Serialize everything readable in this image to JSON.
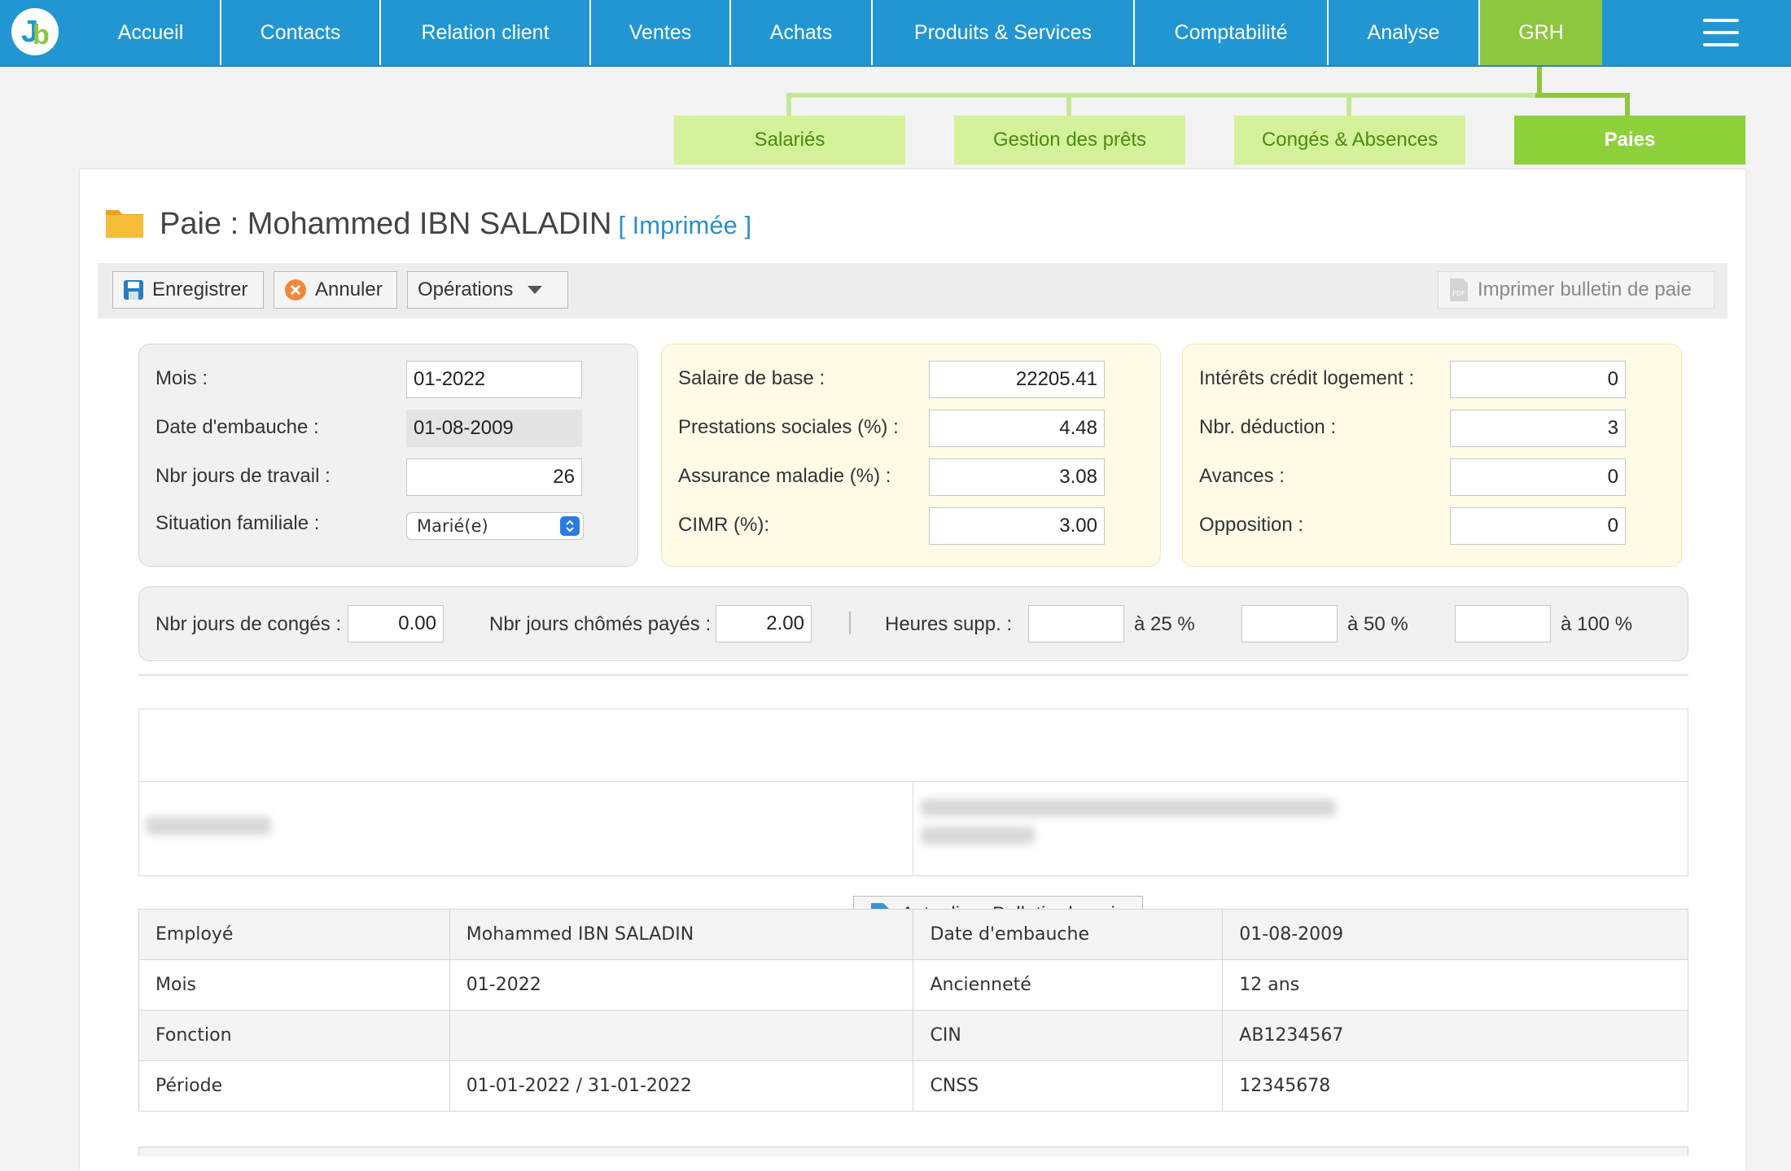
{
  "nav": {
    "items": [
      "Accueil",
      "Contacts",
      "Relation client",
      "Ventes",
      "Achats",
      "Produits & Services",
      "Comptabilité",
      "Analyse",
      "GRH"
    ],
    "active": "GRH"
  },
  "subnav": {
    "items": [
      "Salariés",
      "Gestion des prêts",
      "Congés & Absences",
      "Paies"
    ],
    "active": "Paies"
  },
  "page": {
    "title": "Paie : Mohammed IBN SALADIN",
    "status": "[ Imprimée ]"
  },
  "toolbar": {
    "save": "Enregistrer",
    "cancel": "Annuler",
    "operations": "Opérations",
    "print": "Imprimer bulletin de paie"
  },
  "form": {
    "left": {
      "mois_label": "Mois :",
      "mois": "01-2022",
      "embauche_label": "Date d'embauche :",
      "embauche": "01-08-2009",
      "jours_label": "Nbr jours de travail :",
      "jours": "26",
      "situation_label": "Situation familiale :",
      "situation": "Marié(e)"
    },
    "middle": {
      "salaire_label": "Salaire de base :",
      "salaire": "22205.41",
      "prestations_label": "Prestations sociales (%) :",
      "prestations": "4.48",
      "assurance_label": "Assurance maladie (%) :",
      "assurance": "3.08",
      "cimr_label": "CIMR (%):",
      "cimr": "3.00"
    },
    "right": {
      "interets_label": "Intérêts crédit logement :",
      "interets": "0",
      "deduction_label": "Nbr. déduction :",
      "deduction": "3",
      "avances_label": "Avances :",
      "avances": "0",
      "opposition_label": "Opposition :",
      "opposition": "0"
    },
    "bottom": {
      "conges_label": "Nbr jours de congés :",
      "conges": "0.00",
      "chomes_label": "Nbr jours chômés payés :",
      "chomes": "2.00",
      "heures_label": "Heures supp. :",
      "h25": "",
      "h25_label": "à 25 %",
      "h50": "",
      "h50_label": "à 50 %",
      "h100": "",
      "h100_label": "à 100 %"
    }
  },
  "bulletin": {
    "refresh": "Actualiser Bulletin de paie",
    "rows": [
      [
        "Employé",
        "Mohammed IBN SALADIN",
        "Date d'embauche",
        "01-08-2009"
      ],
      [
        "Mois",
        "01-2022",
        "Ancienneté",
        "12 ans"
      ],
      [
        "Fonction",
        "",
        "CIN",
        "AB1234567"
      ],
      [
        "Période",
        "01-01-2022 / 31-01-2022",
        "CNSS",
        "12345678"
      ]
    ]
  },
  "colors": {
    "primary": "#2196d3",
    "accent_green": "#8dc63f",
    "subtab": "#d4f29a"
  }
}
